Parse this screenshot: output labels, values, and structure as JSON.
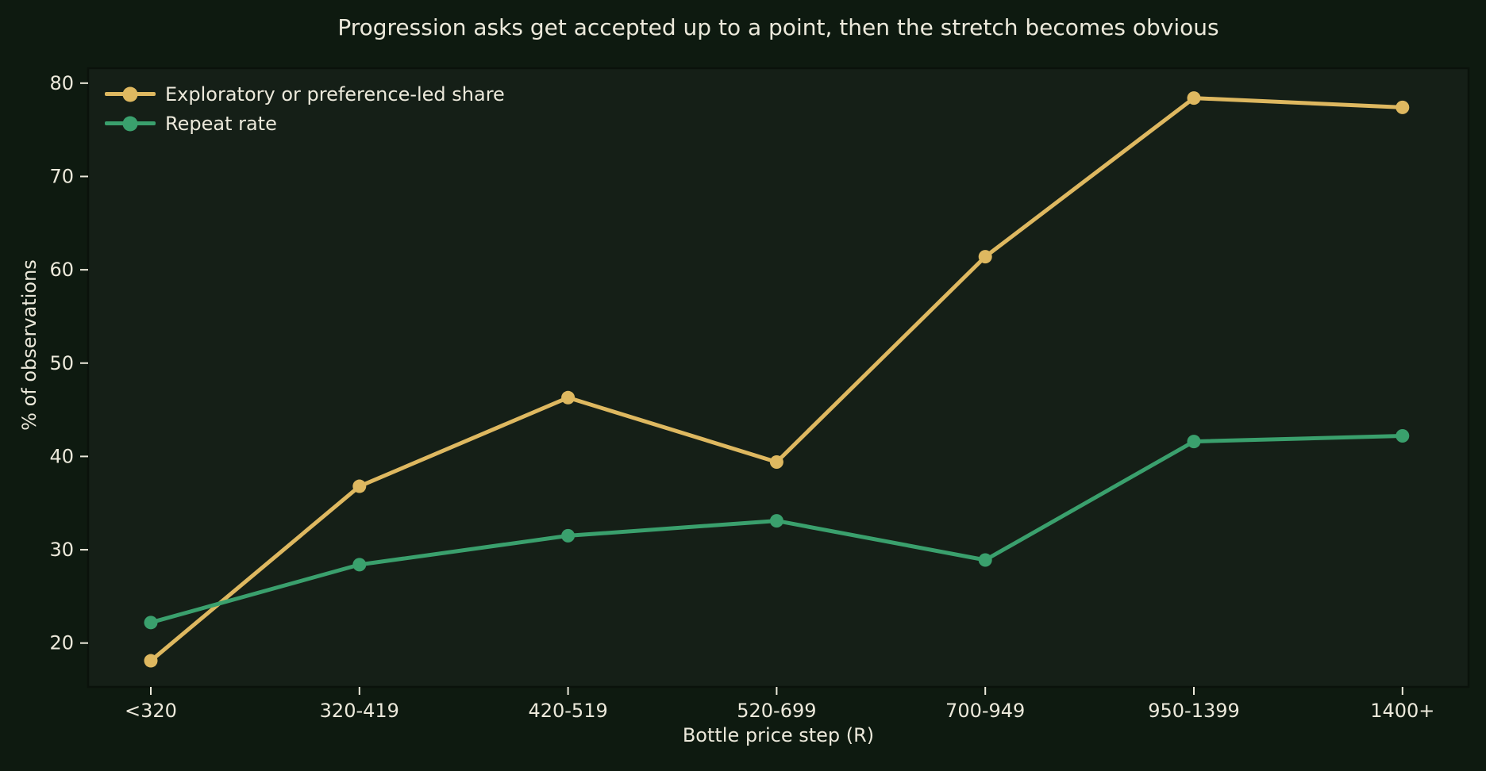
{
  "chart_data": {
    "type": "line",
    "title": "Progression asks get accepted up to a point, then the stretch becomes obvious",
    "xlabel": "Bottle price step (R)",
    "ylabel": "% of observations",
    "categories": [
      "<320",
      "320-419",
      "420-519",
      "520-699",
      "700-949",
      "950-1399",
      "1400+"
    ],
    "series": [
      {
        "name": "Exploratory or preference-led share",
        "color": "#deb860",
        "values": [
          18.1,
          36.8,
          46.3,
          39.4,
          61.4,
          78.4,
          77.4
        ]
      },
      {
        "name": "Repeat rate",
        "color": "#3aa06d",
        "values": [
          22.2,
          28.4,
          31.5,
          33.1,
          28.9,
          41.6,
          42.2
        ]
      }
    ],
    "yticks": [
      20,
      30,
      40,
      50,
      60,
      70,
      80
    ],
    "ylim": [
      15.3,
      81.6
    ],
    "grid": false,
    "legend_position": "upper-left",
    "colors": {
      "figure_bg": "#0e1a10",
      "axes_bg": "#151f17",
      "spine": "#0a120b",
      "text": "#ece9db",
      "tick": "#ece9db"
    }
  }
}
